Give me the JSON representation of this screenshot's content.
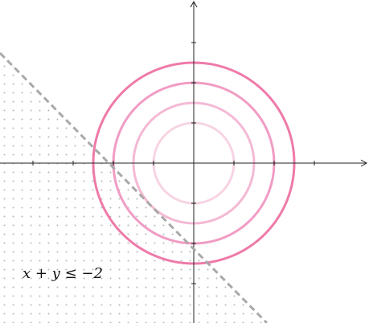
{
  "diagram": {
    "inequality_text": "x + y ≤ −2",
    "boundary_line": {
      "equation_constant": -2,
      "style": "dashed",
      "color": "#a9a9a9"
    },
    "shaded_region": {
      "pattern": "dots",
      "dot_color": "#b7b7b7"
    },
    "circles": [
      {
        "radius": 1.0,
        "color": "#f7d4e4"
      },
      {
        "radius": 1.5,
        "color": "#f4b9d5"
      },
      {
        "radius": 2.0,
        "color": "#f19cc4"
      },
      {
        "radius": 2.5,
        "color": "#ee7aa9"
      }
    ],
    "axes": {
      "color": "#222222",
      "tick_interval": 1
    }
  }
}
